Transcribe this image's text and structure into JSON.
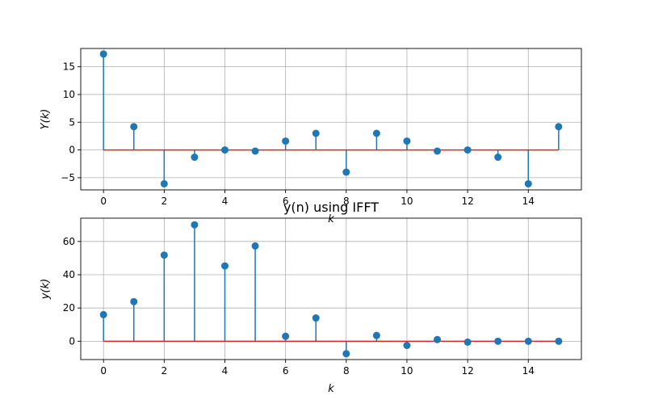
{
  "chart_data": [
    {
      "type": "stem",
      "title": "",
      "xlabel": "k",
      "ylabel": "Y(k)",
      "xlim": [
        -0.75,
        15.75
      ],
      "ylim": [
        -7.2,
        18.3
      ],
      "xticks": [
        0,
        2,
        4,
        6,
        8,
        10,
        12,
        14
      ],
      "yticks": [
        -5,
        0,
        5,
        10,
        15
      ],
      "grid": true,
      "colors": {
        "stem": "#1f77b4",
        "baseline": "#d62728",
        "grid": "#b0b0b0"
      },
      "x": [
        0,
        1,
        2,
        3,
        4,
        5,
        6,
        7,
        8,
        9,
        10,
        11,
        12,
        13,
        14,
        15
      ],
      "values": [
        17.3,
        4.2,
        -6.1,
        -1.3,
        0.0,
        -0.2,
        1.6,
        3.0,
        -4.0,
        3.0,
        1.6,
        -0.2,
        0.0,
        -1.3,
        -6.1,
        4.2
      ]
    },
    {
      "type": "stem",
      "title": "y(n) using IFFT",
      "xlabel": "k",
      "ylabel": "y(k)",
      "xlim": [
        -0.75,
        15.75
      ],
      "ylim": [
        -11,
        74
      ],
      "xticks": [
        0,
        2,
        4,
        6,
        8,
        10,
        12,
        14
      ],
      "yticks": [
        0,
        20,
        40,
        60
      ],
      "grid": true,
      "colors": {
        "stem": "#1f77b4",
        "baseline": "#d62728",
        "grid": "#b0b0b0"
      },
      "x": [
        0,
        1,
        2,
        3,
        4,
        5,
        6,
        7,
        8,
        9,
        10,
        11,
        12,
        13,
        14,
        15
      ],
      "values": [
        16,
        23.8,
        51.8,
        70.0,
        45.3,
        57.3,
        3.0,
        14.0,
        -7.5,
        3.5,
        -2.5,
        1.0,
        -0.5,
        0.0,
        0.0,
        0.0
      ]
    }
  ]
}
